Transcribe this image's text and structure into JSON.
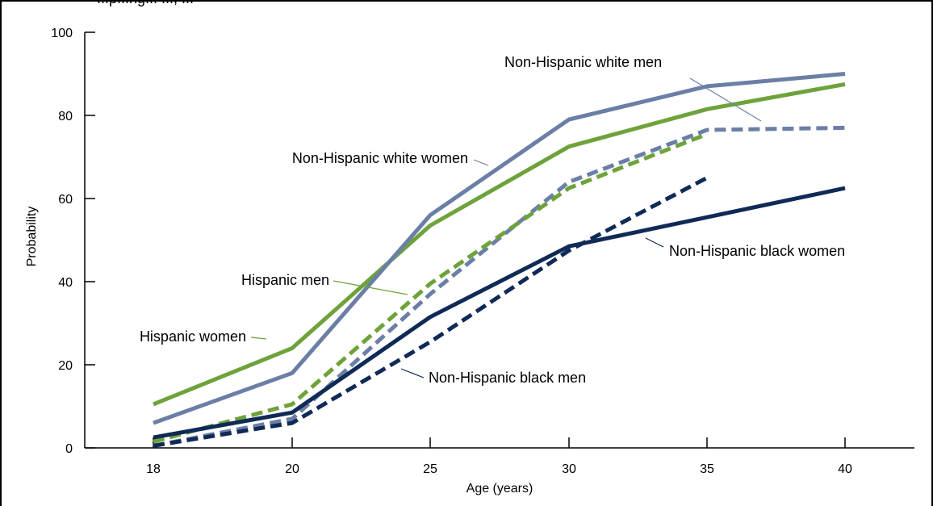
{
  "header": {
    "caption_fragment": "...p...ng... ..., ..."
  },
  "chart_data": {
    "type": "line",
    "xlabel": "Age (years)",
    "ylabel": "Probability",
    "categories": [
      "18",
      "20",
      "25",
      "30",
      "35",
      "40"
    ],
    "y_ticks": [
      "0",
      "20",
      "40",
      "60",
      "80",
      "100"
    ],
    "ylim": [
      0,
      100
    ],
    "grid": false,
    "colors": {
      "white": "#6b7fa6",
      "hispanic": "#6ea23a",
      "black": "#0f2a56"
    },
    "series": [
      {
        "name": "Non-Hispanic white men",
        "values": [
          0.5,
          7,
          37,
          64,
          76.5,
          77
        ],
        "style": "dashed",
        "color": "#6b7fa6"
      },
      {
        "name": "Non-Hispanic white women",
        "values": [
          6,
          18,
          56,
          79,
          87,
          90
        ],
        "style": "solid",
        "color": "#6b7fa6"
      },
      {
        "name": "Hispanic men",
        "values": [
          1.5,
          10.5,
          39.5,
          62.5,
          75.5,
          null
        ],
        "style": "dashed",
        "color": "#6ea23a"
      },
      {
        "name": "Hispanic women",
        "values": [
          10.5,
          24,
          53.5,
          72.5,
          81.5,
          87.5
        ],
        "style": "solid",
        "color": "#6ea23a"
      },
      {
        "name": "Non-Hispanic black men",
        "values": [
          0.5,
          6,
          25.5,
          47.5,
          65,
          null
        ],
        "style": "dashed",
        "color": "#0f2a56"
      },
      {
        "name": "Non-Hispanic black women",
        "values": [
          2.5,
          8.5,
          31.5,
          48.5,
          55.5,
          62.5
        ],
        "style": "solid",
        "color": "#0f2a56"
      }
    ]
  }
}
